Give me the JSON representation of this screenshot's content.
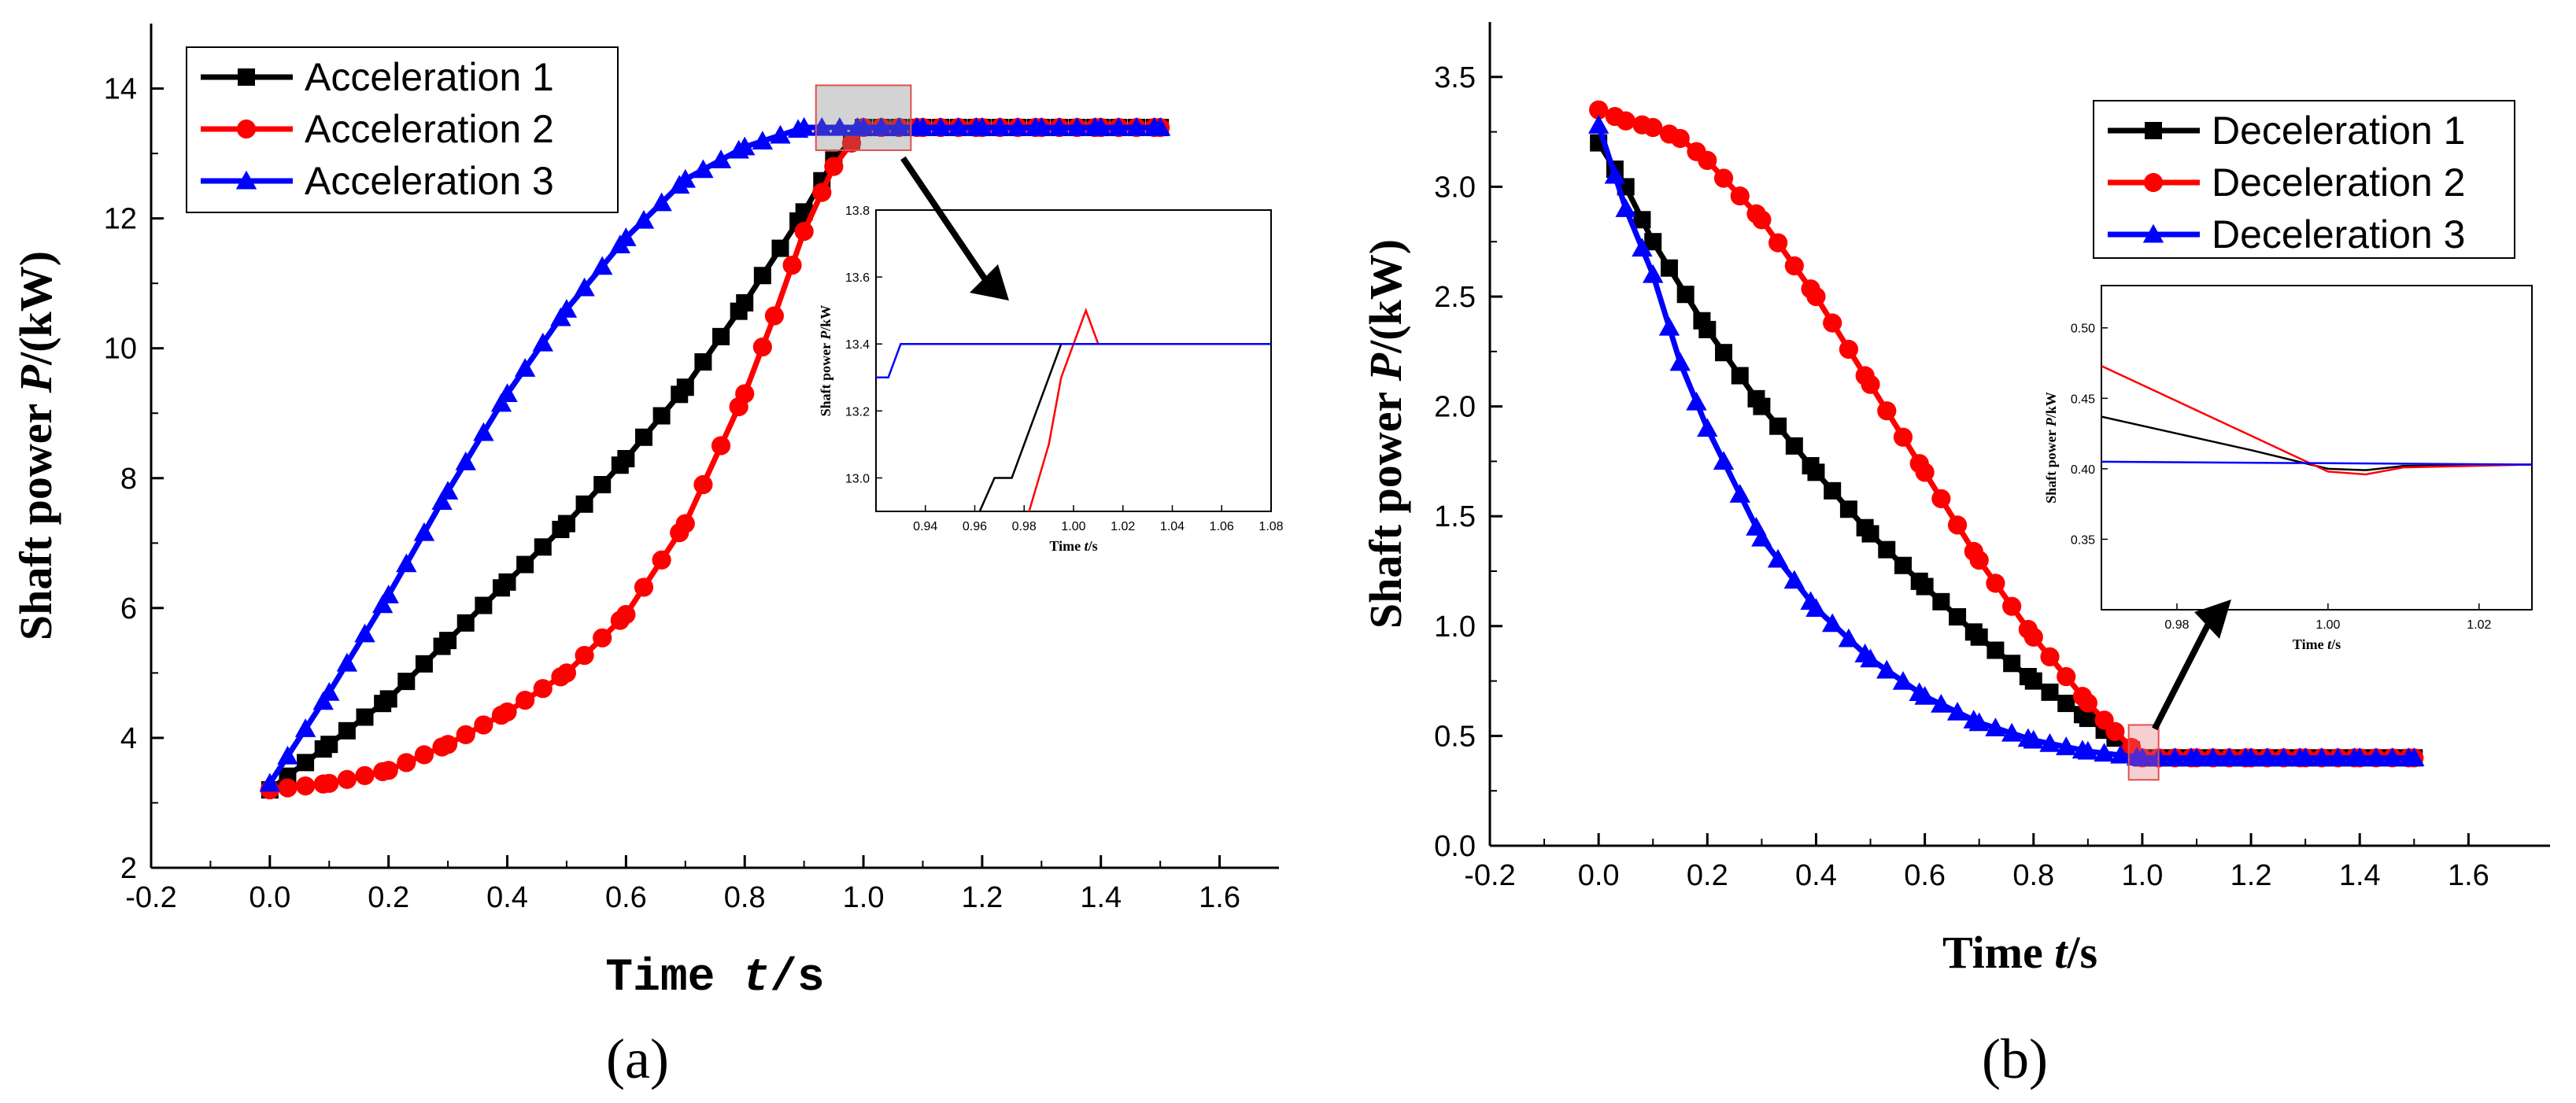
{
  "chart_data": [
    {
      "panel": "a",
      "type": "line",
      "xlabel": "Time ",
      "xlabel_italic": "t",
      "xlabel_unit": "/s",
      "ylabel": "Shaft power ",
      "ylabel_italic": "P",
      "ylabel_unit": "/(kW)",
      "xlim": [
        -0.2,
        1.7
      ],
      "ylim": [
        2,
        15
      ],
      "xticks": [
        "-0.2",
        "0.0",
        "0.2",
        "0.4",
        "0.6",
        "0.8",
        "1.0",
        "1.2",
        "1.4",
        "1.6"
      ],
      "yticks": [
        "2",
        "4",
        "6",
        "8",
        "10",
        "12",
        "14"
      ],
      "panel_label": "(a)",
      "series": [
        {
          "name": "Acceleration 1",
          "color": "#000000",
          "marker": "square",
          "x": [
            0.0,
            0.1,
            0.2,
            0.3,
            0.4,
            0.5,
            0.6,
            0.7,
            0.8,
            0.9,
            0.95,
            1.0,
            1.1,
            1.2,
            1.3,
            1.4,
            1.5
          ],
          "y": [
            3.2,
            3.9,
            4.6,
            5.5,
            6.4,
            7.3,
            8.3,
            9.4,
            10.7,
            12.1,
            12.9,
            13.4,
            13.4,
            13.4,
            13.4,
            13.4,
            13.4
          ]
        },
        {
          "name": "Acceleration 2",
          "color": "#ff0000",
          "marker": "circle",
          "x": [
            0.0,
            0.1,
            0.2,
            0.3,
            0.4,
            0.5,
            0.6,
            0.7,
            0.8,
            0.85,
            0.9,
            0.95,
            1.0,
            1.1,
            1.2,
            1.3,
            1.4,
            1.5
          ],
          "y": [
            3.2,
            3.3,
            3.5,
            3.9,
            4.4,
            5.0,
            5.9,
            7.3,
            9.3,
            10.5,
            11.8,
            12.8,
            13.4,
            13.4,
            13.4,
            13.4,
            13.4,
            13.4
          ]
        },
        {
          "name": "Acceleration 3",
          "color": "#0000ff",
          "marker": "triangle",
          "x": [
            0.0,
            0.1,
            0.2,
            0.3,
            0.4,
            0.5,
            0.6,
            0.7,
            0.8,
            0.9,
            1.0,
            1.1,
            1.2,
            1.3,
            1.4,
            1.5
          ],
          "y": [
            3.3,
            4.7,
            6.2,
            7.8,
            9.3,
            10.6,
            11.7,
            12.6,
            13.1,
            13.4,
            13.4,
            13.4,
            13.4,
            13.4,
            13.4,
            13.4
          ]
        }
      ],
      "inset": {
        "xlabel": "Time ",
        "xlabel_italic": "t",
        "xlabel_unit": "/s",
        "ylabel": "Shaft power ",
        "ylabel_italic": "P",
        "ylabel_unit": "/kW",
        "xlim": [
          0.92,
          1.08
        ],
        "ylim": [
          12.9,
          13.8
        ],
        "xticks": [
          "0.94",
          "0.96",
          "0.98",
          "1.00",
          "1.02",
          "1.04",
          "1.06",
          "1.08"
        ],
        "yticks": [
          "13.0",
          "13.2",
          "13.4",
          "13.6",
          "13.8"
        ],
        "series": [
          {
            "color": "#000000",
            "x": [
              0.962,
              0.968,
              0.975,
              0.99,
              0.995
            ],
            "y": [
              12.9,
              13.0,
              13.0,
              13.3,
              13.4
            ]
          },
          {
            "color": "#ff0000",
            "x": [
              0.982,
              0.99,
              0.995,
              1.005,
              1.01,
              1.08
            ],
            "y": [
              12.9,
              13.1,
              13.3,
              13.5,
              13.4,
              13.4
            ]
          },
          {
            "color": "#0000ff",
            "x": [
              0.92,
              0.925,
              0.93,
              1.08
            ],
            "y": [
              13.3,
              13.3,
              13.4,
              13.4
            ]
          }
        ]
      }
    },
    {
      "panel": "b",
      "type": "line",
      "xlabel": "Time ",
      "xlabel_italic": "t",
      "xlabel_unit": "/s",
      "ylabel": "Shaft power ",
      "ylabel_italic": "P",
      "ylabel_unit": "/(kW)",
      "xlim": [
        -0.2,
        1.75
      ],
      "ylim": [
        0.0,
        3.75
      ],
      "xticks": [
        "-0.2",
        "0.0",
        "0.2",
        "0.4",
        "0.6",
        "0.8",
        "1.0",
        "1.2",
        "1.4",
        "1.6"
      ],
      "yticks": [
        "0.0",
        "0.5",
        "1.0",
        "1.5",
        "2.0",
        "2.5",
        "3.0",
        "3.5"
      ],
      "panel_label": "(b)",
      "series": [
        {
          "name": "Deceleration 1",
          "color": "#000000",
          "marker": "square",
          "x": [
            0.0,
            0.05,
            0.1,
            0.2,
            0.3,
            0.4,
            0.5,
            0.6,
            0.7,
            0.8,
            0.9,
            0.95,
            1.0,
            1.1,
            1.2,
            1.3,
            1.4,
            1.5
          ],
          "y": [
            3.2,
            3.0,
            2.75,
            2.35,
            2.0,
            1.7,
            1.42,
            1.18,
            0.95,
            0.75,
            0.58,
            0.49,
            0.4,
            0.4,
            0.4,
            0.4,
            0.4,
            0.4
          ]
        },
        {
          "name": "Deceleration 2",
          "color": "#ff0000",
          "marker": "circle",
          "x": [
            0.0,
            0.05,
            0.1,
            0.15,
            0.2,
            0.3,
            0.4,
            0.5,
            0.6,
            0.7,
            0.8,
            0.9,
            0.95,
            1.0,
            1.1,
            1.2,
            1.3,
            1.4,
            1.5
          ],
          "y": [
            3.35,
            3.3,
            3.27,
            3.22,
            3.12,
            2.85,
            2.5,
            2.1,
            1.7,
            1.3,
            0.95,
            0.65,
            0.52,
            0.4,
            0.4,
            0.4,
            0.4,
            0.4,
            0.4
          ]
        },
        {
          "name": "Deceleration 3",
          "color": "#0000ff",
          "marker": "triangle",
          "x": [
            0.0,
            0.05,
            0.1,
            0.15,
            0.2,
            0.3,
            0.4,
            0.5,
            0.6,
            0.7,
            0.8,
            0.9,
            1.0,
            1.1,
            1.2,
            1.3,
            1.4,
            1.5
          ],
          "y": [
            3.28,
            2.9,
            2.6,
            2.2,
            1.9,
            1.4,
            1.08,
            0.85,
            0.68,
            0.56,
            0.48,
            0.43,
            0.4,
            0.4,
            0.4,
            0.4,
            0.4,
            0.4
          ]
        }
      ],
      "inset": {
        "xlabel": "Time ",
        "xlabel_italic": "t",
        "xlabel_unit": "/s",
        "ylabel": "Shaft power ",
        "ylabel_italic": "P",
        "ylabel_unit": "/kW",
        "xlim": [
          0.97,
          1.027
        ],
        "ylim": [
          0.3,
          0.53
        ],
        "xticks": [
          "0.98",
          "1.00",
          "1.02"
        ],
        "yticks": [
          "0.35",
          "0.40",
          "0.45",
          "0.50"
        ],
        "series": [
          {
            "color": "#000000",
            "x": [
              0.97,
              0.98,
              0.99,
              1.0,
              1.005,
              1.01,
              1.027
            ],
            "y": [
              0.437,
              0.425,
              0.413,
              0.4,
              0.399,
              0.402,
              0.403
            ]
          },
          {
            "color": "#ff0000",
            "x": [
              0.97,
              0.98,
              0.99,
              1.0,
              1.005,
              1.01,
              1.027
            ],
            "y": [
              0.473,
              0.448,
              0.423,
              0.398,
              0.396,
              0.401,
              0.403
            ]
          },
          {
            "color": "#0000ff",
            "x": [
              0.97,
              1.027
            ],
            "y": [
              0.405,
              0.403
            ]
          }
        ]
      }
    }
  ]
}
